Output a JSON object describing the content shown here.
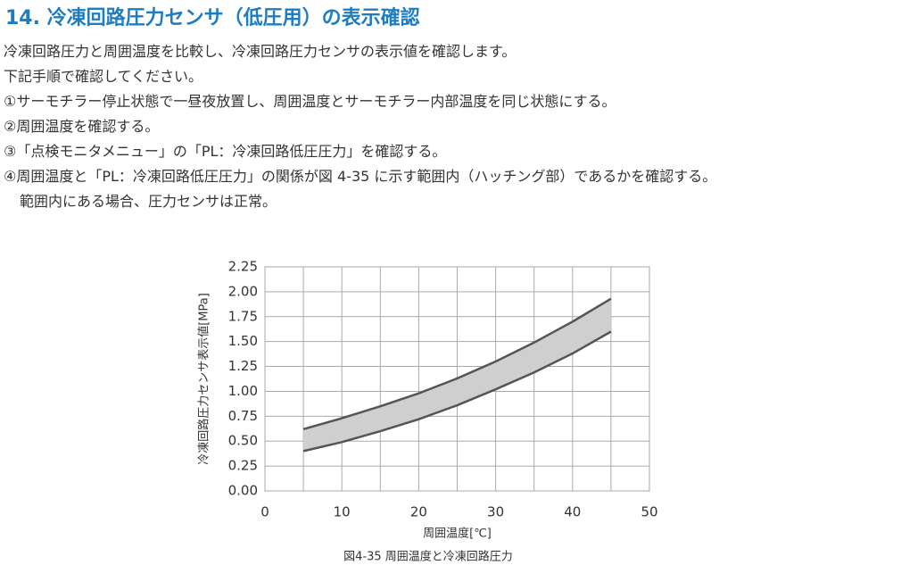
{
  "header": {
    "title": "14. 冷凍回路圧力センサ（低圧用）の表示確認"
  },
  "paragraphs": [
    "冷凍回路圧力と周囲温度を比較し、冷凍回路圧力センサの表示値を確認します。",
    "下記手順で確認してください。",
    "①サーモチラー停止状態で一昼夜放置し、周囲温度とサーモチラー内部温度を同じ状態にする。",
    "②周囲温度を確認する。",
    "③「点検モニタメニュー」の「PL：冷凍回路低圧圧力」を確認する。",
    "④周囲温度と「PL：冷凍回路低圧圧力」の関係が図 4-35 に示す範囲内（ハッチング部）であるかを確認する。",
    "範囲内にある場合、圧力センサは正常。"
  ],
  "chart_data": {
    "type": "band",
    "x_label": "周囲温度[℃]",
    "y_label": "冷凍回路圧力センサ表示値[MPa]",
    "caption": "図4-35 周囲温度と冷凍回路圧力",
    "x": [
      5,
      10,
      15,
      20,
      25,
      30,
      35,
      40,
      45
    ],
    "upper": [
      0.62,
      0.73,
      0.85,
      0.98,
      1.13,
      1.3,
      1.49,
      1.7,
      1.93
    ],
    "lower": [
      0.4,
      0.49,
      0.6,
      0.72,
      0.86,
      1.02,
      1.19,
      1.38,
      1.6
    ],
    "fill_color": "#cfcfcf",
    "line_color": "#555555",
    "xlim": [
      0,
      50
    ],
    "ylim": [
      0,
      2.25
    ],
    "xticks": [
      0,
      10,
      20,
      30,
      40,
      50
    ],
    "xminor": [
      5,
      15,
      25,
      35,
      45
    ],
    "yticks": [
      {
        "value": 0,
        "label": "0.00"
      },
      0.25,
      {
        "value": 0.5,
        "label": "0.50"
      },
      0.75,
      {
        "value": 1,
        "label": "1.00"
      },
      1.25,
      {
        "value": 1.5,
        "label": "1.50"
      },
      1.75,
      {
        "value": 2,
        "label": "2.00"
      },
      2.25
    ],
    "grid": true
  }
}
